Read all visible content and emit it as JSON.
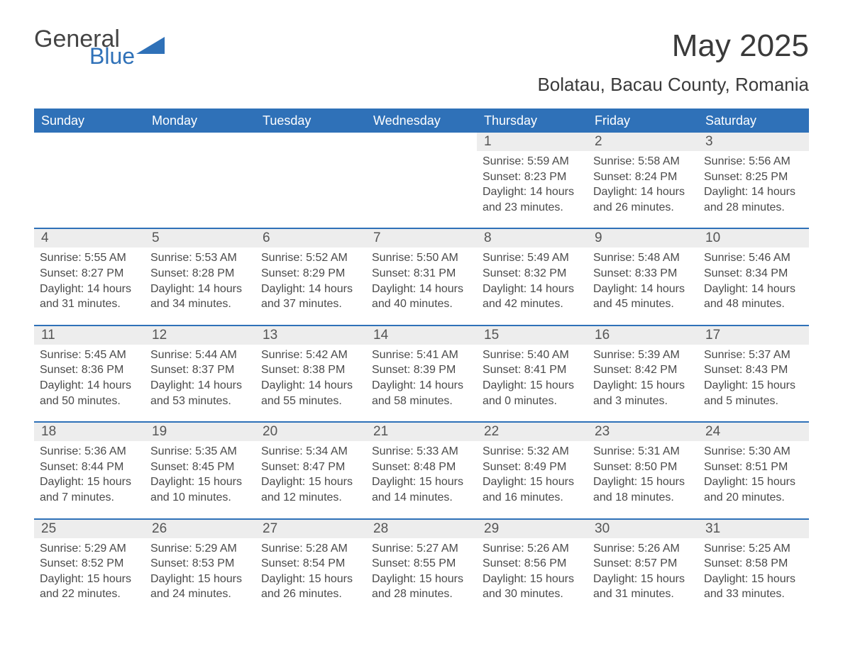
{
  "brand": {
    "word1": "General",
    "word2": "Blue",
    "icon_color": "#2f71b8",
    "text_color": "#444444"
  },
  "title": "May 2025",
  "location": "Bolatau, Bacau County, Romania",
  "colors": {
    "header_bg": "#2f71b8",
    "header_text": "#ffffff",
    "daynum_bg": "#ededed",
    "body_text": "#4a4a4a",
    "rule": "#2f71b8"
  },
  "weekdays": [
    "Sunday",
    "Monday",
    "Tuesday",
    "Wednesday",
    "Thursday",
    "Friday",
    "Saturday"
  ],
  "weeks": [
    [
      {
        "empty": true
      },
      {
        "empty": true
      },
      {
        "empty": true
      },
      {
        "empty": true
      },
      {
        "n": "1",
        "sunrise": "Sunrise: 5:59 AM",
        "sunset": "Sunset: 8:23 PM",
        "daylight": "Daylight: 14 hours and 23 minutes."
      },
      {
        "n": "2",
        "sunrise": "Sunrise: 5:58 AM",
        "sunset": "Sunset: 8:24 PM",
        "daylight": "Daylight: 14 hours and 26 minutes."
      },
      {
        "n": "3",
        "sunrise": "Sunrise: 5:56 AM",
        "sunset": "Sunset: 8:25 PM",
        "daylight": "Daylight: 14 hours and 28 minutes."
      }
    ],
    [
      {
        "n": "4",
        "sunrise": "Sunrise: 5:55 AM",
        "sunset": "Sunset: 8:27 PM",
        "daylight": "Daylight: 14 hours and 31 minutes."
      },
      {
        "n": "5",
        "sunrise": "Sunrise: 5:53 AM",
        "sunset": "Sunset: 8:28 PM",
        "daylight": "Daylight: 14 hours and 34 minutes."
      },
      {
        "n": "6",
        "sunrise": "Sunrise: 5:52 AM",
        "sunset": "Sunset: 8:29 PM",
        "daylight": "Daylight: 14 hours and 37 minutes."
      },
      {
        "n": "7",
        "sunrise": "Sunrise: 5:50 AM",
        "sunset": "Sunset: 8:31 PM",
        "daylight": "Daylight: 14 hours and 40 minutes."
      },
      {
        "n": "8",
        "sunrise": "Sunrise: 5:49 AM",
        "sunset": "Sunset: 8:32 PM",
        "daylight": "Daylight: 14 hours and 42 minutes."
      },
      {
        "n": "9",
        "sunrise": "Sunrise: 5:48 AM",
        "sunset": "Sunset: 8:33 PM",
        "daylight": "Daylight: 14 hours and 45 minutes."
      },
      {
        "n": "10",
        "sunrise": "Sunrise: 5:46 AM",
        "sunset": "Sunset: 8:34 PM",
        "daylight": "Daylight: 14 hours and 48 minutes."
      }
    ],
    [
      {
        "n": "11",
        "sunrise": "Sunrise: 5:45 AM",
        "sunset": "Sunset: 8:36 PM",
        "daylight": "Daylight: 14 hours and 50 minutes."
      },
      {
        "n": "12",
        "sunrise": "Sunrise: 5:44 AM",
        "sunset": "Sunset: 8:37 PM",
        "daylight": "Daylight: 14 hours and 53 minutes."
      },
      {
        "n": "13",
        "sunrise": "Sunrise: 5:42 AM",
        "sunset": "Sunset: 8:38 PM",
        "daylight": "Daylight: 14 hours and 55 minutes."
      },
      {
        "n": "14",
        "sunrise": "Sunrise: 5:41 AM",
        "sunset": "Sunset: 8:39 PM",
        "daylight": "Daylight: 14 hours and 58 minutes."
      },
      {
        "n": "15",
        "sunrise": "Sunrise: 5:40 AM",
        "sunset": "Sunset: 8:41 PM",
        "daylight": "Daylight: 15 hours and 0 minutes."
      },
      {
        "n": "16",
        "sunrise": "Sunrise: 5:39 AM",
        "sunset": "Sunset: 8:42 PM",
        "daylight": "Daylight: 15 hours and 3 minutes."
      },
      {
        "n": "17",
        "sunrise": "Sunrise: 5:37 AM",
        "sunset": "Sunset: 8:43 PM",
        "daylight": "Daylight: 15 hours and 5 minutes."
      }
    ],
    [
      {
        "n": "18",
        "sunrise": "Sunrise: 5:36 AM",
        "sunset": "Sunset: 8:44 PM",
        "daylight": "Daylight: 15 hours and 7 minutes."
      },
      {
        "n": "19",
        "sunrise": "Sunrise: 5:35 AM",
        "sunset": "Sunset: 8:45 PM",
        "daylight": "Daylight: 15 hours and 10 minutes."
      },
      {
        "n": "20",
        "sunrise": "Sunrise: 5:34 AM",
        "sunset": "Sunset: 8:47 PM",
        "daylight": "Daylight: 15 hours and 12 minutes."
      },
      {
        "n": "21",
        "sunrise": "Sunrise: 5:33 AM",
        "sunset": "Sunset: 8:48 PM",
        "daylight": "Daylight: 15 hours and 14 minutes."
      },
      {
        "n": "22",
        "sunrise": "Sunrise: 5:32 AM",
        "sunset": "Sunset: 8:49 PM",
        "daylight": "Daylight: 15 hours and 16 minutes."
      },
      {
        "n": "23",
        "sunrise": "Sunrise: 5:31 AM",
        "sunset": "Sunset: 8:50 PM",
        "daylight": "Daylight: 15 hours and 18 minutes."
      },
      {
        "n": "24",
        "sunrise": "Sunrise: 5:30 AM",
        "sunset": "Sunset: 8:51 PM",
        "daylight": "Daylight: 15 hours and 20 minutes."
      }
    ],
    [
      {
        "n": "25",
        "sunrise": "Sunrise: 5:29 AM",
        "sunset": "Sunset: 8:52 PM",
        "daylight": "Daylight: 15 hours and 22 minutes."
      },
      {
        "n": "26",
        "sunrise": "Sunrise: 5:29 AM",
        "sunset": "Sunset: 8:53 PM",
        "daylight": "Daylight: 15 hours and 24 minutes."
      },
      {
        "n": "27",
        "sunrise": "Sunrise: 5:28 AM",
        "sunset": "Sunset: 8:54 PM",
        "daylight": "Daylight: 15 hours and 26 minutes."
      },
      {
        "n": "28",
        "sunrise": "Sunrise: 5:27 AM",
        "sunset": "Sunset: 8:55 PM",
        "daylight": "Daylight: 15 hours and 28 minutes."
      },
      {
        "n": "29",
        "sunrise": "Sunrise: 5:26 AM",
        "sunset": "Sunset: 8:56 PM",
        "daylight": "Daylight: 15 hours and 30 minutes."
      },
      {
        "n": "30",
        "sunrise": "Sunrise: 5:26 AM",
        "sunset": "Sunset: 8:57 PM",
        "daylight": "Daylight: 15 hours and 31 minutes."
      },
      {
        "n": "31",
        "sunrise": "Sunrise: 5:25 AM",
        "sunset": "Sunset: 8:58 PM",
        "daylight": "Daylight: 15 hours and 33 minutes."
      }
    ]
  ]
}
